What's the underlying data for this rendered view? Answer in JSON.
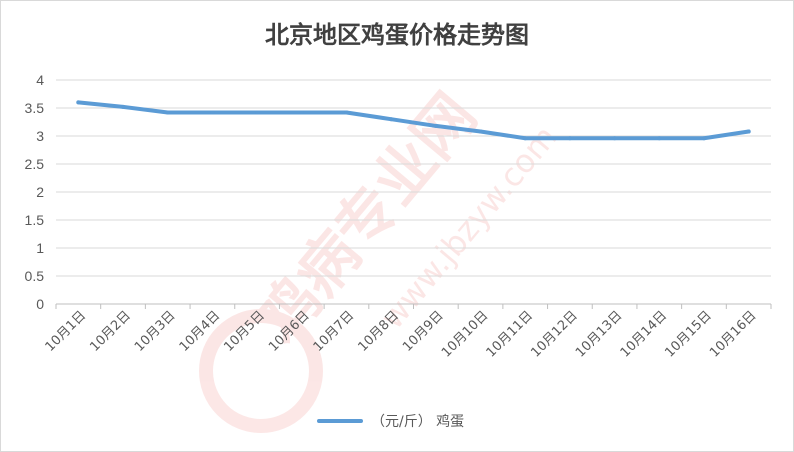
{
  "chart_data": {
    "type": "line",
    "title": "北京地区鸡蛋价格走势图",
    "xlabel": "",
    "ylabel": "",
    "categories": [
      "10月1日",
      "10月2日",
      "10月3日",
      "10月4日",
      "10月5日",
      "10月6日",
      "10月7日",
      "10月8日",
      "10月9日",
      "10月10日",
      "10月11日",
      "10月12日",
      "10月13日",
      "10月14日",
      "10月15日",
      "10月16日"
    ],
    "series": [
      {
        "name": "（元/斤） 鸡蛋",
        "values": [
          3.6,
          3.52,
          3.42,
          3.42,
          3.42,
          3.42,
          3.42,
          3.3,
          3.18,
          3.08,
          2.96,
          2.96,
          2.96,
          2.96,
          2.96,
          3.08
        ]
      }
    ],
    "ylim": [
      0,
      4
    ],
    "yticks": [
      "0",
      "0.5",
      "1",
      "1.5",
      "2",
      "2.5",
      "3",
      "3.5",
      "4"
    ],
    "grid": true,
    "legend_position": "bottom",
    "line_color": "#5b9bd5"
  },
  "watermark": {
    "text": "鸡病专业网 www.jbzyw.com"
  }
}
